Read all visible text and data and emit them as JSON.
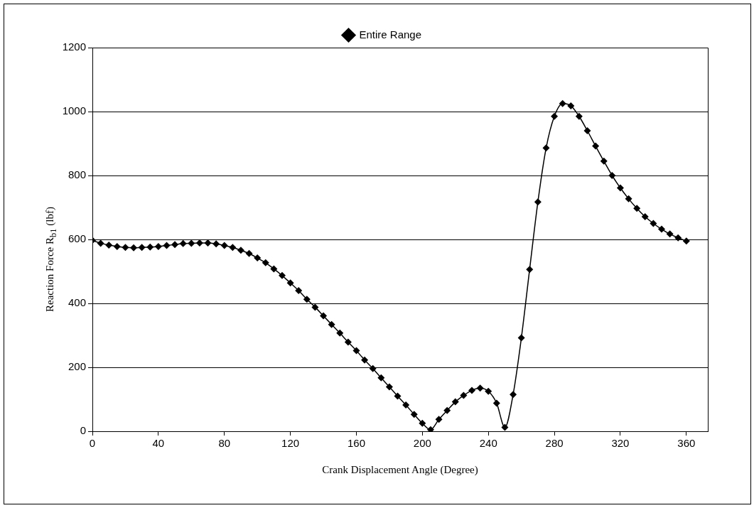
{
  "chart_data": {
    "type": "line",
    "xlabel": "Crank Displacement Angle (Degree)",
    "ylabel": "Reaction Force R$_{b1}$ (lbf)",
    "x": [
      0,
      5,
      10,
      15,
      20,
      25,
      30,
      35,
      40,
      45,
      50,
      55,
      60,
      65,
      70,
      75,
      80,
      85,
      90,
      95,
      100,
      105,
      110,
      115,
      120,
      125,
      130,
      135,
      140,
      145,
      150,
      155,
      160,
      165,
      170,
      175,
      180,
      185,
      190,
      195,
      200,
      205,
      210,
      215,
      220,
      225,
      230,
      235,
      240,
      245,
      250,
      255,
      260,
      265,
      270,
      275,
      280,
      285,
      290,
      295,
      300,
      305,
      310,
      315,
      320,
      325,
      330,
      335,
      340,
      345,
      350,
      355,
      360
    ],
    "series": [
      {
        "name": "Entire Range",
        "color": "#000000",
        "values": [
          597,
          588,
          582,
          578,
          575,
          574,
          575,
          576,
          578,
          581,
          584,
          587,
          588,
          589,
          589,
          586,
          581,
          575,
          566,
          556,
          542,
          527,
          508,
          487,
          464,
          440,
          413,
          388,
          361,
          334,
          307,
          279,
          252,
          223,
          196,
          167,
          139,
          110,
          82,
          53,
          25,
          5,
          37,
          65,
          92,
          112,
          128,
          135,
          125,
          88,
          12,
          115,
          292,
          506,
          717,
          886,
          985,
          1025,
          1018,
          985,
          940,
          892,
          845,
          800,
          761,
          727,
          697,
          671,
          650,
          632,
          617,
          605,
          595
        ]
      }
    ],
    "xlim": [
      0,
      373
    ],
    "xticks": [
      0,
      40,
      80,
      120,
      160,
      200,
      240,
      280,
      320,
      360
    ],
    "ylim": [
      0,
      1200
    ],
    "yticks": [
      0,
      200,
      400,
      600,
      800,
      1000,
      1200
    ],
    "grid": "y",
    "legend": "top",
    "marker": "diamond",
    "line_style": "solid"
  }
}
